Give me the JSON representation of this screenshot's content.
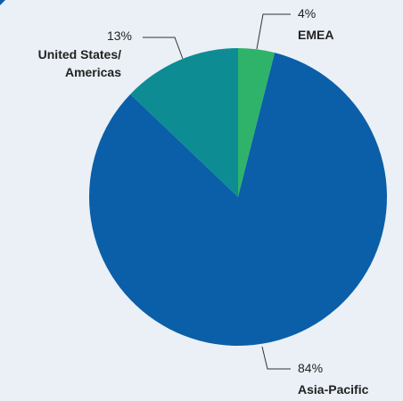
{
  "chart_data": {
    "type": "pie",
    "slices": [
      {
        "label": "EMEA",
        "value": 4,
        "value_label": "4%",
        "color": "#2fb36b"
      },
      {
        "label": "Asia-Pacific",
        "value": 84,
        "value_label": "84%",
        "color": "#0a5fa8"
      },
      {
        "label": "United States/ Americas",
        "label_lines": [
          "United States/",
          "Americas"
        ],
        "value": 13,
        "value_label": "13%",
        "color": "#0d8c94"
      }
    ],
    "legend": "none",
    "start_angle": "12 o'clock",
    "direction": "clockwise"
  }
}
